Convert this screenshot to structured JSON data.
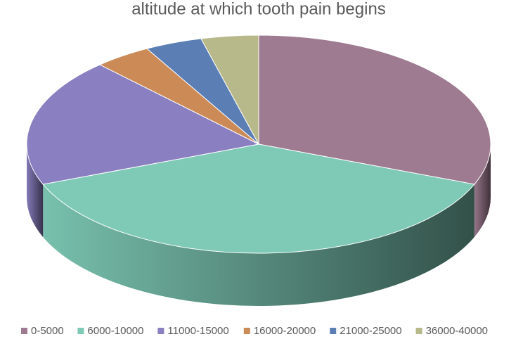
{
  "chart_data": {
    "type": "pie",
    "title": "altitude at which tooth pain begins",
    "categories": [
      "0-5000",
      "6000-10000",
      "11000-15000",
      "16000-20000",
      "21000-25000",
      "36000-40000"
    ],
    "values": [
      31,
      38,
      19,
      4,
      4,
      4
    ],
    "colors": [
      "#9e7b91",
      "#7ecab6",
      "#8a7fc0",
      "#cc8a56",
      "#5b7fb5",
      "#b8b98a"
    ],
    "legend": "bottom"
  }
}
